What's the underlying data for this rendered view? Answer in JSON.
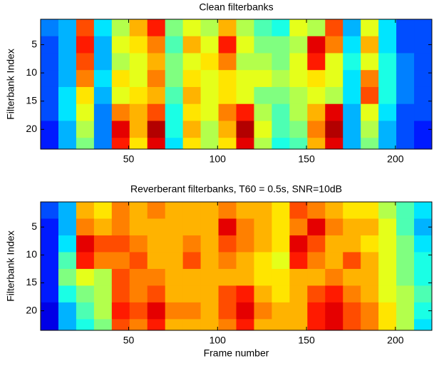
{
  "chart_data": [
    {
      "type": "heatmap",
      "title": "Clean filterbanks",
      "ylabel": "Filterbank Index",
      "colormap": "jet",
      "x_edges": [
        0.5,
        10.5,
        20.5,
        30.5,
        40.5,
        50.5,
        60.5,
        70.5,
        80.5,
        90.5,
        100.5,
        110.5,
        120.5,
        130.5,
        140.5,
        150.5,
        160.5,
        170.5,
        180.5,
        190.5,
        200.5,
        210.5,
        220.5
      ],
      "y_edges": [
        0.5,
        3.5,
        6.5,
        9.5,
        12.5,
        15.5,
        18.5,
        21.5,
        23.5
      ],
      "z": [
        [
          0.25,
          0.3,
          0.8,
          0.35,
          0.55,
          0.7,
          0.85,
          0.5,
          0.6,
          0.55,
          0.7,
          0.55,
          0.45,
          0.4,
          0.6,
          0.55,
          0.8,
          0.3,
          0.6,
          0.35,
          0.2,
          0.2
        ],
        [
          0.2,
          0.3,
          0.85,
          0.3,
          0.6,
          0.65,
          0.75,
          0.45,
          0.7,
          0.6,
          0.85,
          0.6,
          0.5,
          0.5,
          0.55,
          0.9,
          0.75,
          0.35,
          0.7,
          0.35,
          0.2,
          0.2
        ],
        [
          0.2,
          0.3,
          0.8,
          0.3,
          0.55,
          0.6,
          0.7,
          0.5,
          0.6,
          0.65,
          0.75,
          0.55,
          0.55,
          0.5,
          0.6,
          0.85,
          0.6,
          0.4,
          0.6,
          0.4,
          0.25,
          0.2
        ],
        [
          0.2,
          0.3,
          0.75,
          0.35,
          0.65,
          0.6,
          0.75,
          0.5,
          0.65,
          0.6,
          0.65,
          0.6,
          0.6,
          0.55,
          0.6,
          0.65,
          0.6,
          0.35,
          0.75,
          0.4,
          0.25,
          0.2
        ],
        [
          0.2,
          0.35,
          0.65,
          0.3,
          0.6,
          0.65,
          0.7,
          0.45,
          0.7,
          0.6,
          0.65,
          0.6,
          0.5,
          0.5,
          0.55,
          0.6,
          0.55,
          0.35,
          0.8,
          0.4,
          0.25,
          0.2
        ],
        [
          0.2,
          0.35,
          0.6,
          0.25,
          0.75,
          0.7,
          0.8,
          0.4,
          0.65,
          0.6,
          0.75,
          0.85,
          0.55,
          0.45,
          0.55,
          0.7,
          0.9,
          0.3,
          0.6,
          0.35,
          0.2,
          0.2
        ],
        [
          0.15,
          0.3,
          0.55,
          0.25,
          0.9,
          0.7,
          0.95,
          0.4,
          0.7,
          0.55,
          0.7,
          0.95,
          0.6,
          0.45,
          0.5,
          0.75,
          0.95,
          0.3,
          0.55,
          0.3,
          0.2,
          0.15
        ],
        [
          0.15,
          0.3,
          0.5,
          0.25,
          0.85,
          0.65,
          0.9,
          0.35,
          0.65,
          0.55,
          0.65,
          0.9,
          0.55,
          0.4,
          0.45,
          0.7,
          0.9,
          0.3,
          0.5,
          0.3,
          0.2,
          0.15
        ]
      ],
      "xlim": [
        0.5,
        220.5
      ],
      "ylim": [
        0.5,
        23.5
      ],
      "xticks": [
        50,
        100,
        150,
        200
      ],
      "yticks": [
        5,
        10,
        15,
        20
      ]
    },
    {
      "type": "heatmap",
      "title": "Reverberant filterbanks, T60 = 0.5s, SNR=10dB",
      "xlabel": "Frame number",
      "ylabel": "Filterbank Index",
      "colormap": "jet",
      "x_edges": [
        0.5,
        10.5,
        20.5,
        30.5,
        40.5,
        50.5,
        60.5,
        70.5,
        80.5,
        90.5,
        100.5,
        110.5,
        120.5,
        130.5,
        140.5,
        150.5,
        160.5,
        170.5,
        180.5,
        190.5,
        200.5,
        210.5,
        220.5
      ],
      "y_edges": [
        0.5,
        3.5,
        6.5,
        9.5,
        12.5,
        15.5,
        18.5,
        21.5,
        23.5
      ],
      "z": [
        [
          0.2,
          0.3,
          0.7,
          0.65,
          0.75,
          0.7,
          0.75,
          0.7,
          0.7,
          0.7,
          0.75,
          0.7,
          0.7,
          0.65,
          0.8,
          0.75,
          0.7,
          0.65,
          0.65,
          0.55,
          0.45,
          0.35
        ],
        [
          0.15,
          0.3,
          0.75,
          0.7,
          0.75,
          0.7,
          0.7,
          0.7,
          0.7,
          0.7,
          0.9,
          0.75,
          0.7,
          0.65,
          0.75,
          0.9,
          0.75,
          0.7,
          0.7,
          0.6,
          0.45,
          0.3
        ],
        [
          0.15,
          0.35,
          0.9,
          0.8,
          0.8,
          0.75,
          0.7,
          0.7,
          0.75,
          0.7,
          0.8,
          0.75,
          0.7,
          0.65,
          0.9,
          0.8,
          0.7,
          0.7,
          0.65,
          0.6,
          0.5,
          0.35
        ],
        [
          0.15,
          0.45,
          0.85,
          0.75,
          0.75,
          0.8,
          0.7,
          0.7,
          0.8,
          0.7,
          0.75,
          0.7,
          0.65,
          0.6,
          0.85,
          0.75,
          0.7,
          0.8,
          0.7,
          0.6,
          0.5,
          0.4
        ],
        [
          0.15,
          0.5,
          0.6,
          0.55,
          0.8,
          0.75,
          0.75,
          0.7,
          0.7,
          0.7,
          0.7,
          0.7,
          0.65,
          0.65,
          0.7,
          0.7,
          0.75,
          0.7,
          0.7,
          0.6,
          0.5,
          0.4
        ],
        [
          0.15,
          0.4,
          0.5,
          0.55,
          0.8,
          0.75,
          0.8,
          0.7,
          0.7,
          0.7,
          0.8,
          0.85,
          0.7,
          0.65,
          0.7,
          0.8,
          0.85,
          0.75,
          0.7,
          0.6,
          0.55,
          0.45
        ],
        [
          0.1,
          0.3,
          0.45,
          0.55,
          0.85,
          0.8,
          0.9,
          0.75,
          0.75,
          0.7,
          0.8,
          0.9,
          0.75,
          0.7,
          0.7,
          0.85,
          0.9,
          0.8,
          0.75,
          0.65,
          0.55,
          0.4
        ],
        [
          0.1,
          0.3,
          0.4,
          0.5,
          0.8,
          0.75,
          0.85,
          0.7,
          0.7,
          0.7,
          0.75,
          0.85,
          0.7,
          0.7,
          0.7,
          0.85,
          0.9,
          0.8,
          0.75,
          0.65,
          0.55,
          0.35
        ]
      ],
      "xlim": [
        0.5,
        220.5
      ],
      "ylim": [
        0.5,
        23.5
      ],
      "xticks": [
        50,
        100,
        150,
        200
      ],
      "yticks": [
        5,
        10,
        15,
        20
      ]
    }
  ]
}
